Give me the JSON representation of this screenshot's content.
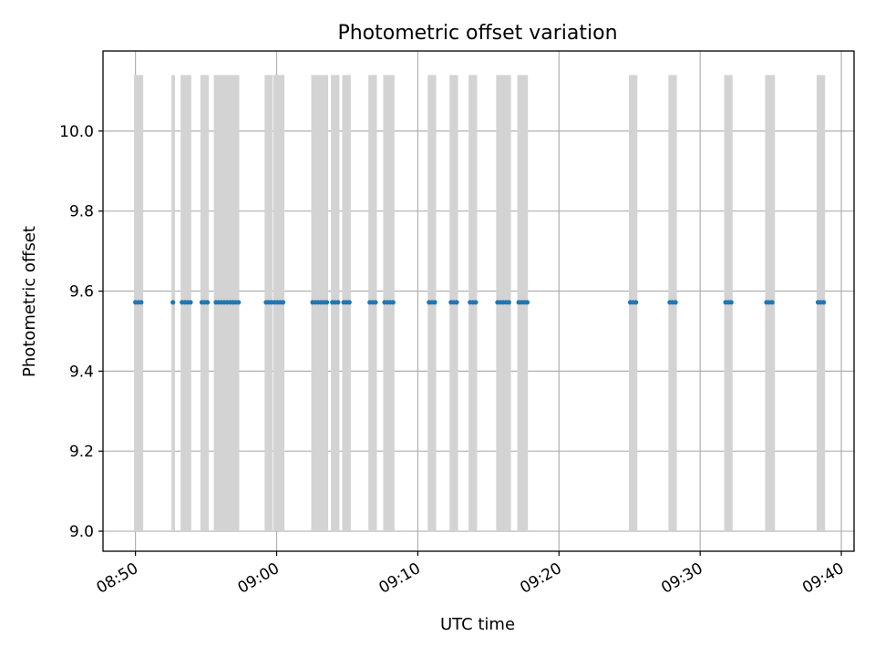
{
  "chart_data": {
    "type": "scatter",
    "title": "Photometric offset variation",
    "xlabel": "UTC time",
    "ylabel": "Photometric offset",
    "x_unit": "minutes after 08:50 UTC",
    "xlim": [
      -2.3,
      50.9
    ],
    "ylim": [
      8.95,
      10.2
    ],
    "x_ticks": [
      {
        "value": 0,
        "label": "08:50"
      },
      {
        "value": 10,
        "label": "09:00"
      },
      {
        "value": 20,
        "label": "09:10"
      },
      {
        "value": 30,
        "label": "09:20"
      },
      {
        "value": 40,
        "label": "09:30"
      },
      {
        "value": 50,
        "label": "09:40"
      }
    ],
    "y_ticks": [
      {
        "value": 9.0,
        "label": "9.0"
      },
      {
        "value": 9.2,
        "label": "9.2"
      },
      {
        "value": 9.4,
        "label": "9.4"
      },
      {
        "value": 9.6,
        "label": "9.6"
      },
      {
        "value": 9.8,
        "label": "9.8"
      },
      {
        "value": 10.0,
        "label": "10.0"
      }
    ],
    "grid": true,
    "colors": {
      "points": "#1f77b4",
      "bands": "#d3d3d3",
      "grid": "#b0b0b0"
    },
    "bands": {
      "y_range": [
        9.0,
        10.14
      ],
      "x_ranges": [
        [
          -0.1,
          0.55
        ],
        [
          2.55,
          2.8
        ],
        [
          3.2,
          3.95
        ],
        [
          4.6,
          5.2
        ],
        [
          5.55,
          7.35
        ],
        [
          9.15,
          9.7
        ],
        [
          9.75,
          10.55
        ],
        [
          12.45,
          13.65
        ],
        [
          13.85,
          14.45
        ],
        [
          14.65,
          15.25
        ],
        [
          16.5,
          17.1
        ],
        [
          17.55,
          18.35
        ],
        [
          20.7,
          21.3
        ],
        [
          22.25,
          22.85
        ],
        [
          23.6,
          24.2
        ],
        [
          25.55,
          26.6
        ],
        [
          27.05,
          27.8
        ],
        [
          34.95,
          35.55
        ],
        [
          37.75,
          38.35
        ],
        [
          41.7,
          42.3
        ],
        [
          44.6,
          45.3
        ],
        [
          48.25,
          48.85
        ]
      ]
    },
    "series": [
      {
        "y": 9.572,
        "x": [
          0.0,
          0.2,
          0.4,
          2.65,
          3.3,
          3.5,
          3.7,
          3.9,
          4.7,
          4.9,
          5.1,
          5.7,
          5.9,
          6.1,
          6.3,
          6.5,
          6.7,
          6.9,
          7.1,
          7.3,
          9.25,
          9.45,
          9.65,
          9.85,
          10.05,
          10.25,
          10.45,
          12.55,
          12.75,
          12.95,
          13.15,
          13.35,
          13.55,
          13.95,
          14.15,
          14.35,
          14.75,
          14.95,
          15.15,
          16.6,
          16.8,
          17.0,
          17.65,
          17.85,
          18.05,
          18.25,
          20.8,
          21.0,
          21.2,
          22.35,
          22.55,
          22.75,
          23.7,
          23.9,
          24.1,
          25.65,
          25.85,
          26.05,
          26.25,
          26.45,
          27.15,
          27.35,
          27.55,
          27.75,
          35.05,
          35.25,
          35.45,
          37.85,
          38.05,
          38.25,
          41.8,
          42.0,
          42.2,
          44.7,
          44.9,
          45.1,
          48.35,
          48.55,
          48.75
        ]
      }
    ]
  }
}
